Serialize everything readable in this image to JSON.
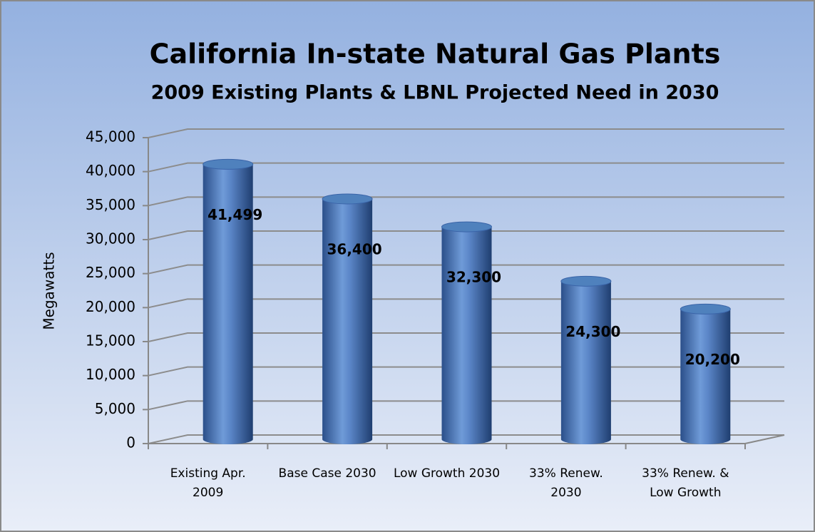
{
  "chart_data": {
    "type": "bar",
    "title": "California In-state Natural Gas Plants",
    "subtitle": "2009 Existing Plants & LBNL Projected Need in 2030",
    "y_label": "Megawatts",
    "categories": [
      "Existing Apr. 2009",
      "Base Case 2030",
      "Low Growth 2030",
      "33% Renew. 2030",
      "33% Renew. & Low Growth"
    ],
    "values": [
      41499,
      36400,
      32300,
      24300,
      20200
    ],
    "value_labels": [
      "41,499",
      "36,400",
      "32,300",
      "24,300",
      "20,200"
    ],
    "color": "#4f81bd",
    "ylim": [
      0,
      45000
    ],
    "yticks": [
      0,
      {
        "value": 5000,
        "label": "5,000"
      },
      {
        "value": 10000,
        "label": "10,000"
      },
      {
        "value": 15000,
        "label": "15,000"
      },
      {
        "value": 20000,
        "label": "20,000"
      },
      {
        "value": 25000,
        "label": "25,000"
      },
      {
        "value": 30000,
        "label": "30,000"
      },
      {
        "value": 35000,
        "label": "35,000"
      },
      {
        "value": 40000,
        "label": "40,000"
      },
      {
        "value": 45000,
        "label": "45,000"
      }
    ],
    "grid": true
  }
}
